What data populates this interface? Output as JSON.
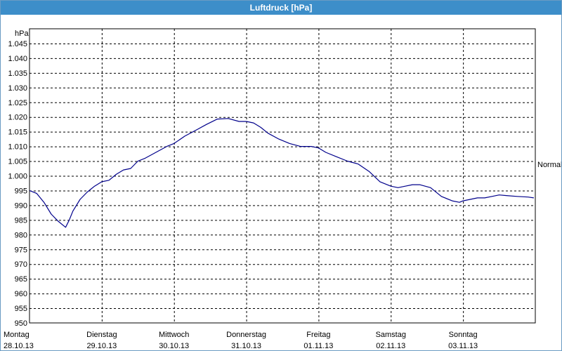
{
  "window": {
    "title": "Luftdruck [hPa]"
  },
  "chart_data": {
    "type": "line",
    "title": "Luftdruck [hPa]",
    "ylabel": "hPa",
    "xlabel": "",
    "ylim": [
      950,
      1050
    ],
    "yticks": [
      "950",
      "955",
      "960",
      "965",
      "970",
      "975",
      "980",
      "985",
      "990",
      "995",
      "1.000",
      "1.005",
      "1.010",
      "1.015",
      "1.020",
      "1.025",
      "1.030",
      "1.035",
      "1.040",
      "1.045"
    ],
    "yticks_values": [
      950,
      955,
      960,
      965,
      970,
      975,
      980,
      985,
      990,
      995,
      1000,
      1005,
      1010,
      1015,
      1020,
      1025,
      1030,
      1035,
      1040,
      1045
    ],
    "xlim": [
      0,
      7
    ],
    "x_unit": "days from Montag 28.10.13 00:00",
    "x_categories": [
      {
        "day": "Montag",
        "date": "28.10.13"
      },
      {
        "day": "Dienstag",
        "date": "29.10.13"
      },
      {
        "day": "Mittwoch",
        "date": "30.10.13"
      },
      {
        "day": "Donnerstag",
        "date": "31.10.13"
      },
      {
        "day": "Freitag",
        "date": "01.11.13"
      },
      {
        "day": "Samstag",
        "date": "02.11.13"
      },
      {
        "day": "Sonntag",
        "date": "03.11.13"
      }
    ],
    "grid": true,
    "reference_line": {
      "label": "Normal",
      "value": 1013.25
    },
    "series": [
      {
        "name": "",
        "color": "#00008b",
        "x": [
          0,
          0.1,
          0.2,
          0.3,
          0.4,
          0.5,
          0.55,
          0.6,
          0.7,
          0.8,
          0.9,
          1.0,
          1.1,
          1.2,
          1.3,
          1.4,
          1.5,
          1.6,
          1.75,
          1.9,
          2.0,
          2.15,
          2.3,
          2.45,
          2.6,
          2.75,
          2.9,
          3.0,
          3.1,
          3.2,
          3.3,
          3.45,
          3.6,
          3.75,
          3.9,
          4.0,
          4.1,
          4.25,
          4.4,
          4.55,
          4.7,
          4.85,
          5.0,
          5.1,
          5.2,
          5.3,
          5.4,
          5.55,
          5.7,
          5.85,
          5.95,
          6.0,
          6.1,
          6.2,
          6.3,
          6.4,
          6.5,
          6.6,
          6.75,
          6.9,
          6.98
        ],
        "values": [
          995,
          994,
          991,
          987,
          984.5,
          982.5,
          985,
          988,
          992,
          994.5,
          996.5,
          998,
          998.5,
          1000.5,
          1002,
          1002.5,
          1005,
          1006,
          1008,
          1010,
          1011,
          1013.5,
          1015.5,
          1017.5,
          1019.3,
          1019.5,
          1018.5,
          1018.5,
          1018,
          1016.5,
          1014.5,
          1012.5,
          1011,
          1010,
          1010,
          1009.5,
          1008,
          1006.5,
          1005,
          1004,
          1001.5,
          998,
          996.5,
          996,
          996.5,
          997,
          997,
          996,
          993,
          991.5,
          991,
          991.5,
          992,
          992.5,
          992.5,
          993,
          993.5,
          993.3,
          993,
          992.8,
          992.5
        ]
      }
    ]
  }
}
